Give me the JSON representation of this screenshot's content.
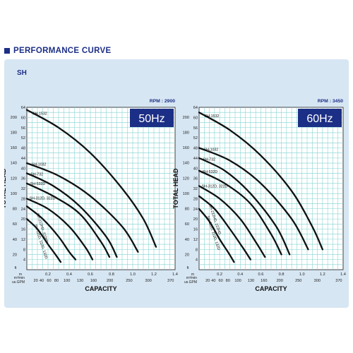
{
  "header": {
    "title": "PERFORMANCE CURVE"
  },
  "panel": {
    "series_label": "SH"
  },
  "colors": {
    "accent": "#1c2f86",
    "panel_bg": "#d7e6f3",
    "grid": "#7fd1cf"
  },
  "chart_data": [
    {
      "type": "line",
      "rpm_label": "RPM : 2900",
      "hz_label": "50Hz",
      "ylabel": "TOTAL HEAD",
      "xlabel": "CAPACITY",
      "y_unit_m": "m",
      "y_unit_ft": "ft",
      "x_unit_m3": "m³/min",
      "x_unit_gpm": "us.GPM",
      "xlim": [
        0,
        1.4
      ],
      "ylim_m": [
        0,
        64
      ],
      "m_ticks": [
        "4",
        "8",
        "12",
        "16",
        "20",
        "24",
        "28",
        "32",
        "36",
        "40",
        "44",
        "48",
        "52",
        "56",
        "60",
        "64"
      ],
      "ft_ticks": [
        "20",
        "40",
        "60",
        "80",
        "100",
        "120",
        "140",
        "160",
        "180",
        "200"
      ],
      "x_ticks_m3": [
        "0.2",
        "0.4",
        "0.6",
        "0.8",
        "1.0",
        "1.2",
        "1.4"
      ],
      "x_ticks_gpm": [
        "20",
        "40",
        "60",
        "80",
        "100",
        "130",
        "160",
        "200",
        "250",
        "300",
        "370"
      ],
      "series": [
        {
          "name": "SH-1532",
          "x": [
            0,
            0.3,
            0.6,
            0.9,
            1.1,
            1.22
          ],
          "y": [
            63,
            56,
            46,
            32,
            20,
            9
          ]
        },
        {
          "name": "SH-1032",
          "x": [
            0,
            0.3,
            0.6,
            0.9,
            1.05
          ],
          "y": [
            42,
            37,
            29,
            17,
            7
          ]
        },
        {
          "name": "SH-732",
          "x": [
            0,
            0.25,
            0.5,
            0.75,
            0.85
          ],
          "y": [
            38,
            33,
            25,
            13,
            5
          ]
        },
        {
          "name": "SH-532D",
          "x": [
            0,
            0.25,
            0.5,
            0.7,
            0.78
          ],
          "y": [
            34,
            29,
            22,
            11,
            5
          ]
        },
        {
          "name": "SH-312D, 322D",
          "x": [
            0,
            0.2,
            0.4,
            0.55,
            0.62
          ],
          "y": [
            28,
            24,
            17,
            9,
            4
          ]
        },
        {
          "name": "SH-212HD, 222HD",
          "x": [
            0,
            0.15,
            0.3,
            0.4,
            0.46
          ],
          "y": [
            25,
            20,
            13,
            7,
            4
          ]
        },
        {
          "name": "SH-111D, 112D, 132D",
          "x": [
            0,
            0.1,
            0.2,
            0.27,
            0.32
          ],
          "y": [
            20,
            16,
            10,
            6,
            3
          ]
        }
      ]
    },
    {
      "type": "line",
      "rpm_label": "RPM : 3450",
      "hz_label": "60Hz",
      "ylabel": "TOTAL HEAD",
      "xlabel": "CAPACITY",
      "y_unit_m": "m",
      "y_unit_ft": "ft",
      "x_unit_m3": "m³/min",
      "x_unit_gpm": "us.GPM",
      "xlim": [
        0,
        1.4
      ],
      "ylim_m": [
        0,
        64
      ],
      "m_ticks": [
        "4",
        "8",
        "12",
        "16",
        "20",
        "24",
        "28",
        "32",
        "36",
        "40",
        "44",
        "48",
        "52",
        "56",
        "60",
        "64"
      ],
      "ft_ticks": [
        "20",
        "40",
        "60",
        "80",
        "100",
        "120",
        "140",
        "160",
        "180",
        "200"
      ],
      "x_ticks_m3": [
        "0.2",
        "0.4",
        "0.6",
        "0.8",
        "1.0",
        "1.2",
        "1.4"
      ],
      "x_ticks_gpm": [
        "20",
        "40",
        "60",
        "80",
        "100",
        "130",
        "160",
        "200",
        "250",
        "300",
        "370"
      ],
      "series": [
        {
          "name": "SH-1532",
          "x": [
            0,
            0.3,
            0.6,
            0.9,
            1.1,
            1.2
          ],
          "y": [
            62,
            55,
            45,
            31,
            17,
            8
          ]
        },
        {
          "name": "SH-1032",
          "x": [
            0,
            0.3,
            0.6,
            0.9,
            1.06
          ],
          "y": [
            48,
            43,
            34,
            20,
            8
          ]
        },
        {
          "name": "SH-732",
          "x": [
            0,
            0.25,
            0.5,
            0.75,
            0.88
          ],
          "y": [
            44,
            39,
            30,
            17,
            6
          ]
        },
        {
          "name": "SH-532D",
          "x": [
            0,
            0.25,
            0.5,
            0.7,
            0.8
          ],
          "y": [
            39,
            34,
            26,
            14,
            6
          ]
        },
        {
          "name": "SH-312D, 322D",
          "x": [
            0,
            0.2,
            0.4,
            0.55,
            0.64
          ],
          "y": [
            33,
            28,
            20,
            11,
            5
          ]
        },
        {
          "name": "SH-212HD, 222HD",
          "x": [
            0,
            0.15,
            0.3,
            0.42,
            0.5
          ],
          "y": [
            29,
            24,
            16,
            9,
            4
          ]
        },
        {
          "name": "SH-111D, 112D, 132D",
          "x": [
            0,
            0.1,
            0.2,
            0.28,
            0.34
          ],
          "y": [
            24,
            19,
            12,
            7,
            3
          ]
        }
      ]
    }
  ]
}
